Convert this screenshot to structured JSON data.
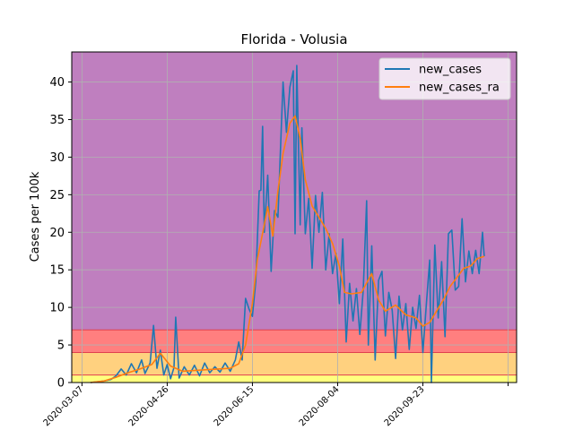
{
  "chart_data": {
    "type": "line",
    "title": "Florida - Volusia",
    "xlabel": "",
    "ylabel": "Cases per 100k",
    "ylim": [
      0,
      44
    ],
    "yticks": [
      0,
      5,
      10,
      15,
      20,
      25,
      30,
      35,
      40
    ],
    "x_start": "2020-03-01",
    "x_end": "2020-11-17",
    "xticks": [
      "2020-03-07",
      "2020-04-26",
      "2020-06-15",
      "2020-08-04",
      "2020-09-23",
      "2020-11-12"
    ],
    "xtick_labels": [
      "2020-03-07",
      "2020-04-26",
      "2020-06-15",
      "2020-08-04",
      "2020-09-23",
      ""
    ],
    "grid": true,
    "legend_position": "top-right",
    "bands": [
      {
        "name": "yellow-band",
        "from": 0,
        "to": 1,
        "color": "#ffff7f"
      },
      {
        "name": "orange-band",
        "from": 1,
        "to": 4,
        "color": "#ffd17f"
      },
      {
        "name": "red-band",
        "from": 4,
        "to": 7,
        "color": "#ff7f7f"
      },
      {
        "name": "purple-band",
        "from": 7,
        "to": 44,
        "color": "#bf7fbf"
      }
    ],
    "series": [
      {
        "name": "new_cases",
        "color": "#1f77b4",
        "points": [
          [
            "2020-03-12",
            0.0
          ],
          [
            "2020-03-16",
            0.1
          ],
          [
            "2020-03-20",
            0.2
          ],
          [
            "2020-03-24",
            0.4
          ],
          [
            "2020-03-27",
            0.9
          ],
          [
            "2020-03-30",
            1.8
          ],
          [
            "2020-04-02",
            1.0
          ],
          [
            "2020-04-05",
            2.5
          ],
          [
            "2020-04-08",
            1.3
          ],
          [
            "2020-04-11",
            3.0
          ],
          [
            "2020-04-13",
            1.2
          ],
          [
            "2020-04-16",
            2.6
          ],
          [
            "2020-04-18",
            7.6
          ],
          [
            "2020-04-20",
            1.9
          ],
          [
            "2020-04-22",
            4.3
          ],
          [
            "2020-04-24",
            1.0
          ],
          [
            "2020-04-26",
            2.4
          ],
          [
            "2020-04-28",
            0.5
          ],
          [
            "2020-04-30",
            2.0
          ],
          [
            "2020-05-01",
            8.7
          ],
          [
            "2020-05-03",
            0.6
          ],
          [
            "2020-05-06",
            2.1
          ],
          [
            "2020-05-09",
            1.0
          ],
          [
            "2020-05-12",
            2.3
          ],
          [
            "2020-05-15",
            0.9
          ],
          [
            "2020-05-18",
            2.6
          ],
          [
            "2020-05-21",
            1.3
          ],
          [
            "2020-05-24",
            2.1
          ],
          [
            "2020-05-27",
            1.4
          ],
          [
            "2020-05-30",
            2.6
          ],
          [
            "2020-06-02",
            1.5
          ],
          [
            "2020-06-05",
            3.0
          ],
          [
            "2020-06-07",
            5.4
          ],
          [
            "2020-06-09",
            3.0
          ],
          [
            "2020-06-11",
            11.2
          ],
          [
            "2020-06-13",
            9.8
          ],
          [
            "2020-06-15",
            8.8
          ],
          [
            "2020-06-17",
            13.5
          ],
          [
            "2020-06-19",
            25.5
          ],
          [
            "2020-06-20",
            25.6
          ],
          [
            "2020-06-21",
            34.1
          ],
          [
            "2020-06-22",
            20.0
          ],
          [
            "2020-06-24",
            27.6
          ],
          [
            "2020-06-26",
            14.8
          ],
          [
            "2020-06-28",
            22.9
          ],
          [
            "2020-06-30",
            22.0
          ],
          [
            "2020-07-02",
            34.1
          ],
          [
            "2020-07-03",
            40.0
          ],
          [
            "2020-07-05",
            33.3
          ],
          [
            "2020-07-07",
            39.3
          ],
          [
            "2020-07-09",
            41.5
          ],
          [
            "2020-07-10",
            19.8
          ],
          [
            "2020-07-11",
            42.2
          ],
          [
            "2020-07-13",
            21.0
          ],
          [
            "2020-07-14",
            33.9
          ],
          [
            "2020-07-16",
            19.8
          ],
          [
            "2020-07-18",
            24.5
          ],
          [
            "2020-07-20",
            15.2
          ],
          [
            "2020-07-22",
            24.9
          ],
          [
            "2020-07-24",
            20.0
          ],
          [
            "2020-07-26",
            25.3
          ],
          [
            "2020-07-28",
            15.0
          ],
          [
            "2020-07-30",
            19.8
          ],
          [
            "2020-08-01",
            14.5
          ],
          [
            "2020-08-03",
            17.2
          ],
          [
            "2020-08-05",
            10.5
          ],
          [
            "2020-08-07",
            19.1
          ],
          [
            "2020-08-09",
            5.4
          ],
          [
            "2020-08-11",
            13.2
          ],
          [
            "2020-08-13",
            8.2
          ],
          [
            "2020-08-15",
            12.5
          ],
          [
            "2020-08-17",
            6.4
          ],
          [
            "2020-08-19",
            12.3
          ],
          [
            "2020-08-21",
            24.2
          ],
          [
            "2020-08-22",
            5.0
          ],
          [
            "2020-08-24",
            18.2
          ],
          [
            "2020-08-26",
            3.0
          ],
          [
            "2020-08-28",
            13.6
          ],
          [
            "2020-08-30",
            14.8
          ],
          [
            "2020-09-01",
            6.2
          ],
          [
            "2020-09-03",
            12.0
          ],
          [
            "2020-09-05",
            9.6
          ],
          [
            "2020-09-07",
            3.2
          ],
          [
            "2020-09-09",
            11.5
          ],
          [
            "2020-09-11",
            7.0
          ],
          [
            "2020-09-13",
            10.5
          ],
          [
            "2020-09-15",
            4.4
          ],
          [
            "2020-09-17",
            10.0
          ],
          [
            "2020-09-19",
            7.2
          ],
          [
            "2020-09-21",
            11.6
          ],
          [
            "2020-09-23",
            4.0
          ],
          [
            "2020-09-25",
            10.3
          ],
          [
            "2020-09-27",
            16.3
          ],
          [
            "2020-09-28",
            0.0
          ],
          [
            "2020-09-30",
            18.3
          ],
          [
            "2020-10-02",
            8.6
          ],
          [
            "2020-10-04",
            16.1
          ],
          [
            "2020-10-06",
            6.1
          ],
          [
            "2020-10-08",
            19.8
          ],
          [
            "2020-10-10",
            20.3
          ],
          [
            "2020-10-12",
            12.3
          ],
          [
            "2020-10-14",
            12.8
          ],
          [
            "2020-10-16",
            21.8
          ],
          [
            "2020-10-18",
            13.4
          ],
          [
            "2020-10-20",
            17.5
          ],
          [
            "2020-10-22",
            14.5
          ],
          [
            "2020-10-24",
            17.6
          ],
          [
            "2020-10-26",
            14.5
          ],
          [
            "2020-10-28",
            20.0
          ],
          [
            "2020-10-29",
            16.8
          ]
        ]
      },
      {
        "name": "new_cases_ra",
        "color": "#ff7f0e",
        "points": [
          [
            "2020-03-12",
            0.0
          ],
          [
            "2020-03-20",
            0.2
          ],
          [
            "2020-03-27",
            0.7
          ],
          [
            "2020-04-03",
            1.3
          ],
          [
            "2020-04-10",
            1.8
          ],
          [
            "2020-04-17",
            2.4
          ],
          [
            "2020-04-22",
            3.9
          ],
          [
            "2020-04-28",
            2.2
          ],
          [
            "2020-05-05",
            1.5
          ],
          [
            "2020-05-12",
            1.6
          ],
          [
            "2020-05-19",
            1.7
          ],
          [
            "2020-05-26",
            1.8
          ],
          [
            "2020-06-02",
            1.9
          ],
          [
            "2020-06-07",
            2.5
          ],
          [
            "2020-06-11",
            5.0
          ],
          [
            "2020-06-15",
            10.5
          ],
          [
            "2020-06-18",
            16.5
          ],
          [
            "2020-06-22",
            21.0
          ],
          [
            "2020-06-24",
            23.4
          ],
          [
            "2020-06-27",
            19.5
          ],
          [
            "2020-06-30",
            25.5
          ],
          [
            "2020-07-03",
            30.5
          ],
          [
            "2020-07-07",
            34.5
          ],
          [
            "2020-07-10",
            35.5
          ],
          [
            "2020-07-13",
            32.5
          ],
          [
            "2020-07-16",
            27.0
          ],
          [
            "2020-07-20",
            23.5
          ],
          [
            "2020-07-24",
            22.0
          ],
          [
            "2020-07-28",
            20.5
          ],
          [
            "2020-08-01",
            18.5
          ],
          [
            "2020-08-05",
            15.5
          ],
          [
            "2020-08-08",
            12.0
          ],
          [
            "2020-08-12",
            11.8
          ],
          [
            "2020-08-18",
            12.0
          ],
          [
            "2020-08-24",
            14.5
          ],
          [
            "2020-08-28",
            11.0
          ],
          [
            "2020-09-01",
            9.5
          ],
          [
            "2020-09-07",
            10.3
          ],
          [
            "2020-09-13",
            9.0
          ],
          [
            "2020-09-19",
            8.6
          ],
          [
            "2020-09-23",
            7.5
          ],
          [
            "2020-09-27",
            8.0
          ],
          [
            "2020-10-01",
            9.5
          ],
          [
            "2020-10-05",
            11.0
          ],
          [
            "2020-10-09",
            12.8
          ],
          [
            "2020-10-13",
            14.0
          ],
          [
            "2020-10-17",
            15.2
          ],
          [
            "2020-10-21",
            15.5
          ],
          [
            "2020-10-25",
            16.5
          ],
          [
            "2020-10-29",
            16.8
          ]
        ]
      }
    ]
  }
}
